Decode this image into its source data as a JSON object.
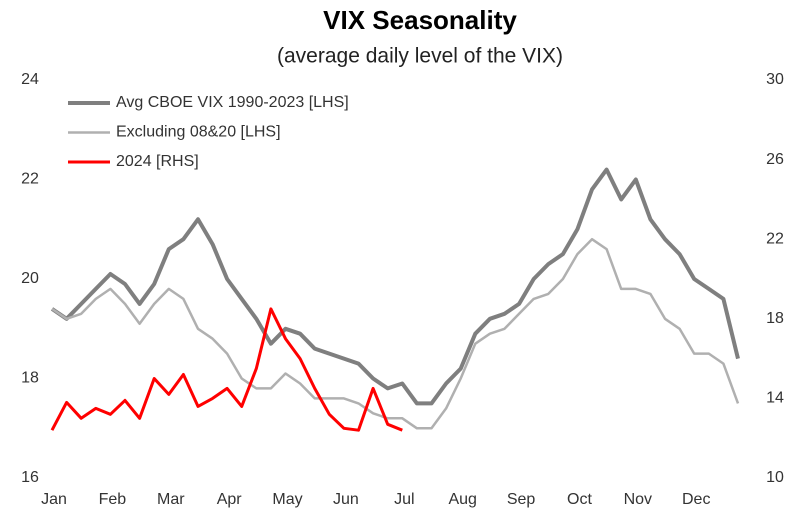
{
  "chart_data": {
    "type": "line",
    "title": "VIX Seasonality",
    "subtitle": "(average daily level of the VIX)",
    "categories": [
      "Jan",
      null,
      null,
      null,
      "Feb",
      null,
      null,
      null,
      "Mar",
      null,
      null,
      null,
      "Apr",
      null,
      null,
      null,
      "May",
      null,
      null,
      null,
      "Jun",
      null,
      null,
      null,
      "Jul",
      null,
      null,
      null,
      "Aug",
      null,
      null,
      null,
      "Sep",
      null,
      null,
      null,
      "Oct",
      null,
      null,
      null,
      "Nov",
      null,
      null,
      null,
      "Dec",
      null,
      null,
      null
    ],
    "series": [
      {
        "name": "Avg CBOE VIX 1990-2023 [LHS]",
        "color": "#7f7f7f",
        "axis": "y",
        "values": [
          19.4,
          19.2,
          19.5,
          19.8,
          20.1,
          19.9,
          19.5,
          19.9,
          20.6,
          20.8,
          21.2,
          20.7,
          20.0,
          19.6,
          19.2,
          18.7,
          19.0,
          18.9,
          18.6,
          18.5,
          18.4,
          18.3,
          18.0,
          17.8,
          17.9,
          17.5,
          17.5,
          17.9,
          18.2,
          18.9,
          19.2,
          19.3,
          19.5,
          20.0,
          20.3,
          20.5,
          21.0,
          21.8,
          22.2,
          21.6,
          22.0,
          21.2,
          20.8,
          20.5,
          20.0,
          19.8,
          19.6,
          18.4
        ]
      },
      {
        "name": "Excluding 08&20 [LHS]",
        "color": "#b0b0b0",
        "axis": "y",
        "values": [
          19.4,
          19.2,
          19.3,
          19.6,
          19.8,
          19.5,
          19.1,
          19.5,
          19.8,
          19.6,
          19.0,
          18.8,
          18.5,
          18.0,
          17.8,
          17.8,
          18.1,
          17.9,
          17.6,
          17.6,
          17.6,
          17.5,
          17.3,
          17.2,
          17.2,
          17.0,
          17.0,
          17.4,
          18.0,
          18.7,
          18.9,
          19.0,
          19.3,
          19.6,
          19.7,
          20.0,
          20.5,
          20.8,
          20.6,
          19.8,
          19.8,
          19.7,
          19.2,
          19.0,
          18.5,
          18.5,
          18.3,
          17.5
        ]
      },
      {
        "name": "2024 [RHS]",
        "color": "#ff0000",
        "axis": "y2",
        "values": [
          12.4,
          13.8,
          13.0,
          13.5,
          13.2,
          13.9,
          13.0,
          15.0,
          14.2,
          15.2,
          13.6,
          14.0,
          14.5,
          13.6,
          15.5,
          18.5,
          17.0,
          16.0,
          14.5,
          13.2,
          12.5,
          12.4,
          14.5,
          12.7,
          12.4,
          null,
          null,
          null,
          null,
          null,
          null,
          null,
          null,
          null,
          null,
          null,
          null,
          null,
          null,
          null,
          null,
          null,
          null,
          null,
          null,
          null,
          null,
          null
        ]
      }
    ],
    "ylim": [
      16,
      24
    ],
    "yticks": [
      16,
      18,
      20,
      22,
      24
    ],
    "y2lim": [
      10,
      30
    ],
    "y2ticks": [
      10,
      14,
      18,
      22,
      26,
      30
    ],
    "legend": "upper left",
    "grid": false
  }
}
